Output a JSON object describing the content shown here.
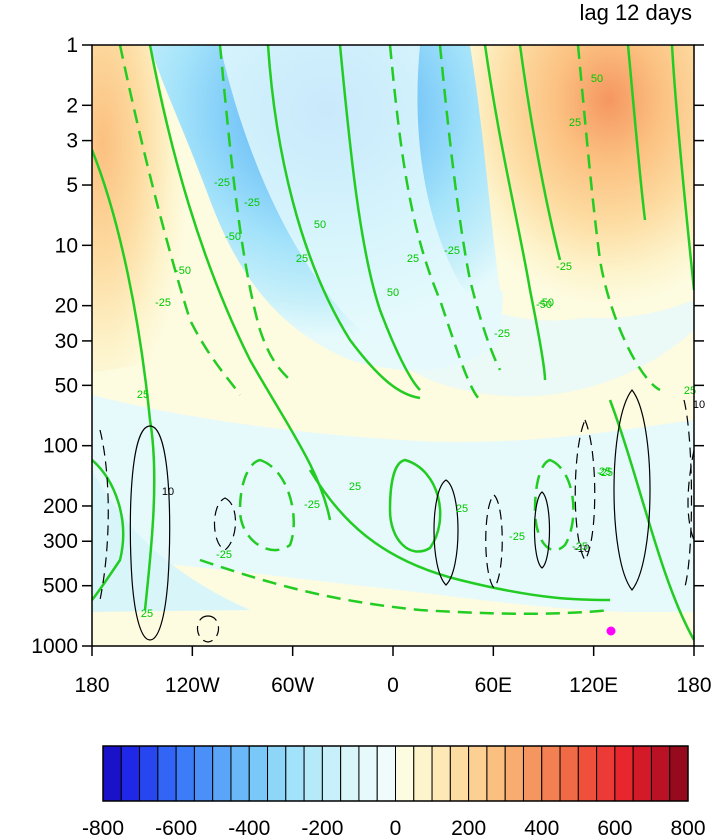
{
  "chart_data": {
    "type": "heatmap",
    "title_right": "lag 12 days",
    "xlabel": "",
    "ylabel": "",
    "x_ticks": [
      "180",
      "120W",
      "60W",
      "0",
      "60E",
      "120E",
      "180"
    ],
    "x_tick_lon": [
      -180,
      -120,
      -60,
      0,
      60,
      120,
      180
    ],
    "y_ticks": [
      "1",
      "2",
      "3",
      "5",
      "10",
      "20",
      "30",
      "50",
      "100",
      "200",
      "300",
      "500",
      "1000"
    ],
    "y_tick_hpa": [
      1,
      2,
      3,
      5,
      10,
      20,
      30,
      50,
      100,
      200,
      300,
      500,
      1000
    ],
    "y_scale": "log, inverted (pressure hPa)",
    "xlim": [
      -180,
      180
    ],
    "ylim": [
      1000,
      1
    ],
    "colorbar": {
      "labels": [
        "-800",
        "-600",
        "-400",
        "-200",
        "0",
        "200",
        "400",
        "600",
        "800"
      ],
      "levels": [
        -800,
        -750,
        -700,
        -650,
        -600,
        -550,
        -500,
        -450,
        -400,
        -350,
        -300,
        -250,
        -200,
        -150,
        -100,
        -50,
        0,
        50,
        100,
        150,
        200,
        250,
        300,
        350,
        400,
        450,
        500,
        550,
        600,
        650,
        700,
        750,
        800
      ],
      "colors": [
        "#1a12c8",
        "#1f28e6",
        "#2846f0",
        "#3264f5",
        "#3c7cf8",
        "#4a90f8",
        "#5aa5f8",
        "#6ab8f8",
        "#7ac8f8",
        "#8ed6f8",
        "#a2e2fa",
        "#b6eaf8",
        "#c8f0fa",
        "#d8f6fa",
        "#e6fafc",
        "#f0fcfc",
        "#fdfbe0",
        "#fdf4cc",
        "#fde8b6",
        "#fddca2",
        "#fcd092",
        "#fbc080",
        "#f8ac70",
        "#f59660",
        "#f28052",
        "#f06a46",
        "#ee503c",
        "#ec3a36",
        "#e8262e",
        "#d41a28",
        "#b81224",
        "#960a1e"
      ]
    },
    "shaded_fields": [
      {
        "sign": "positive",
        "region": "180W-150W",
        "p_range": [
          1,
          50
        ],
        "peak": 150
      },
      {
        "sign": "negative",
        "region": "130W-0",
        "p_range": [
          1,
          50
        ],
        "peak": -300
      },
      {
        "sign": "positive",
        "region": "60E-180E",
        "p_range": [
          1,
          50
        ],
        "peak": 250
      },
      {
        "sign": "negative",
        "region": "180W-130W",
        "p_range": [
          200,
          1000
        ],
        "peak": -50
      }
    ],
    "green_contour_labels": [
      "25",
      "-50",
      "-25",
      "-50",
      "-25",
      "25",
      "-25",
      "25",
      "50",
      "-25",
      "25",
      "50",
      "25",
      "-25",
      "-50",
      "50",
      "-25",
      "25",
      "-50",
      "-25",
      "25",
      "-25",
      "25",
      "-25",
      "-25",
      "25",
      "-25"
    ],
    "black_contour_labels": [
      "10",
      "-10",
      "10"
    ],
    "marker": {
      "lon": 127,
      "p": 900,
      "color": "#ff00ff"
    }
  }
}
